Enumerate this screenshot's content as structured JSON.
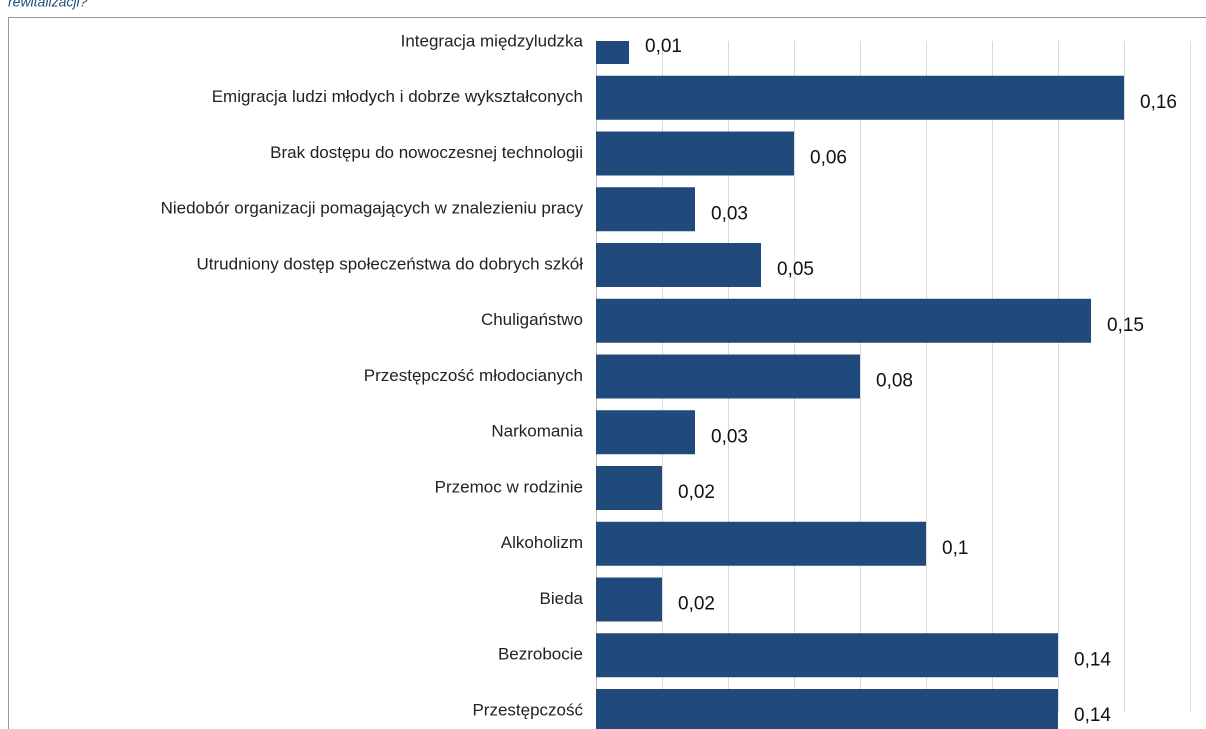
{
  "heading": "rewitalizacji?",
  "chart_data": {
    "type": "barh",
    "categories": [
      "Integracja międzyludzka",
      "Emigracja ludzi młodych i dobrze wykształconych",
      "Brak dostępu do nowoczesnej technologii",
      "Niedobór organizacji pomagających w znalezieniu pracy",
      "Utrudniony dostęp społeczeństwa do dobrych szkół",
      "Chuligaństwo",
      "Przestępczość młodocianych",
      "Narkomania",
      "Przemoc w rodzinie",
      "Alkoholizm",
      "Bieda",
      "Bezrobocie",
      "Przestępczość"
    ],
    "values": [
      0.01,
      0.16,
      0.06,
      0.03,
      0.05,
      0.15,
      0.08,
      0.03,
      0.02,
      0.1,
      0.02,
      0.14,
      0.14
    ],
    "value_labels": [
      "0,01",
      "0,16",
      "0,06",
      "0,03",
      "0,05",
      "0,15",
      "0,08",
      "0,03",
      "0,02",
      "0,1",
      "0,02",
      "0,14",
      "0,14"
    ],
    "color": "#204a7c",
    "xlim": [
      0,
      0.18
    ],
    "xticks": [
      0,
      0.02,
      0.04,
      0.06,
      0.08,
      0.1,
      0.12,
      0.14,
      0.16,
      0.18
    ],
    "grid": true
  }
}
